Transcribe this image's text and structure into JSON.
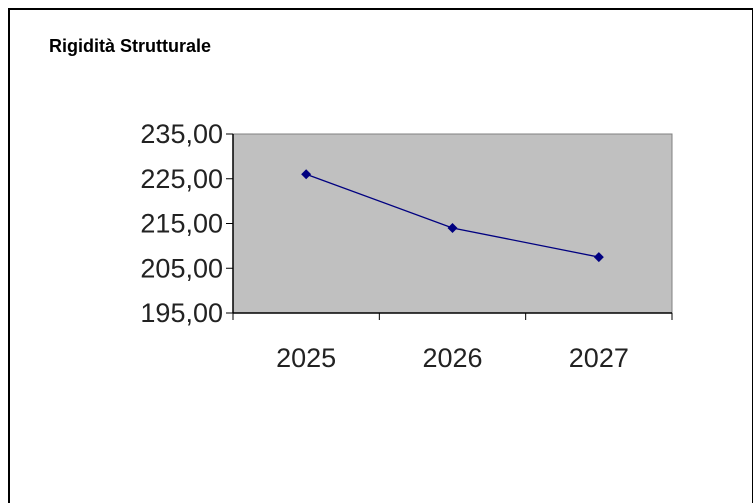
{
  "chart_data": {
    "type": "line",
    "title": "Rigidità Strutturale",
    "xlabel": "",
    "ylabel": "",
    "categories": [
      "2025",
      "2026",
      "2027"
    ],
    "series": [
      {
        "values": [
          226.0,
          214.0,
          207.5
        ]
      }
    ],
    "ylim": [
      195,
      235
    ],
    "yticks": [
      "235,00",
      "225,00",
      "215,00",
      "205,00",
      "195,00"
    ],
    "grid": false,
    "legend": "none",
    "colors": {
      "plot_area": "#c0c0c0",
      "line": "#000080",
      "marker": "#000080",
      "axis": "#000000"
    }
  }
}
